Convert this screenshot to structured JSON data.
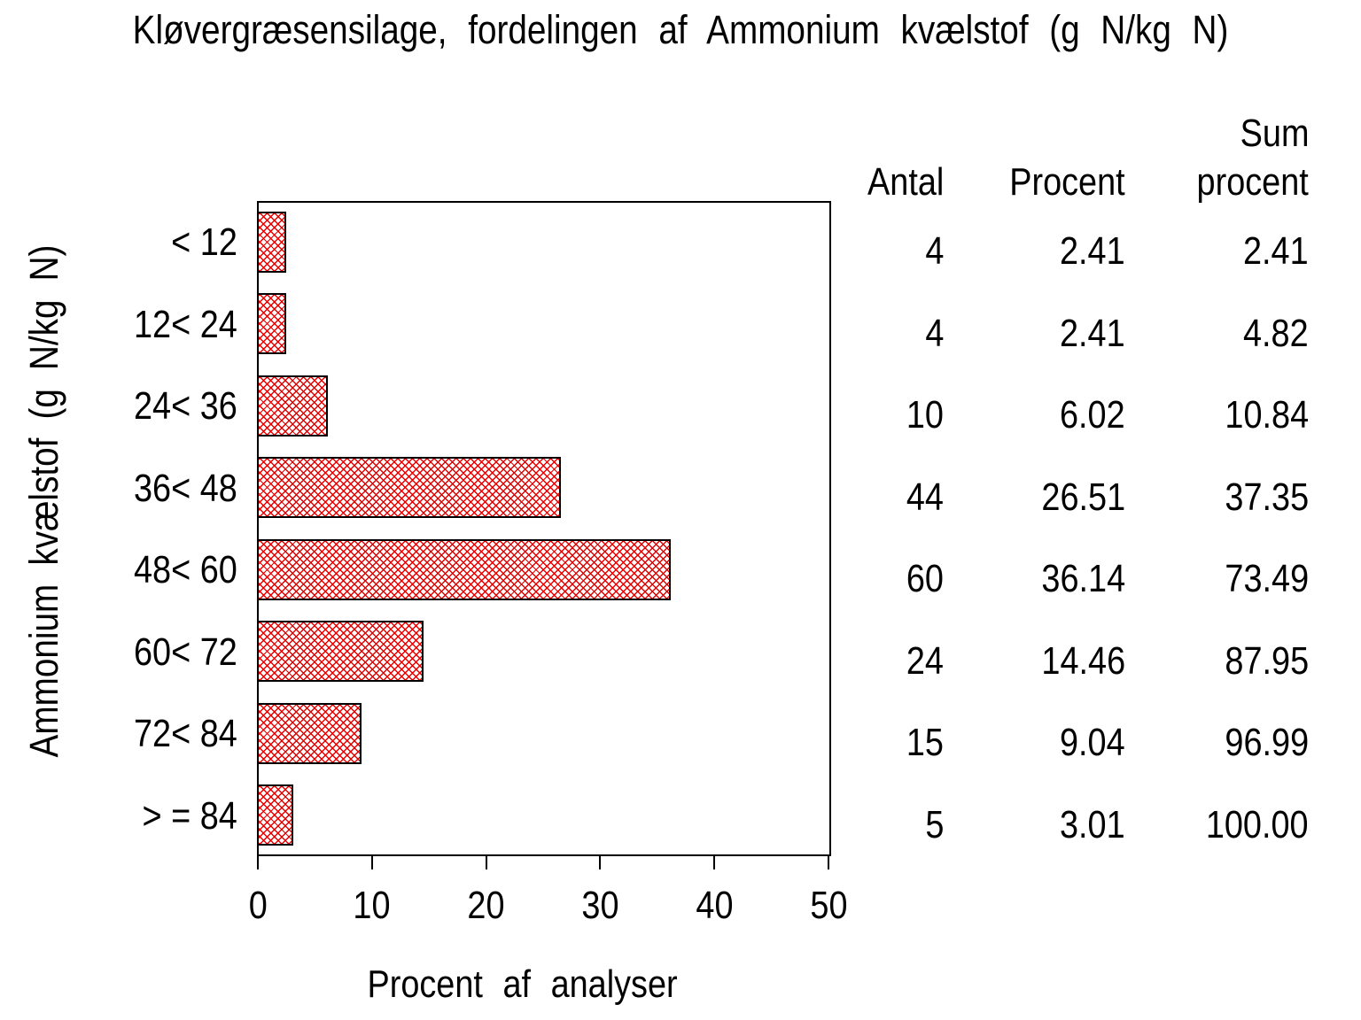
{
  "page": {
    "title": "Kløvergræsensilage, fordelingen af Ammonium kvælstof (g N/kg N)"
  },
  "chart_data": {
    "type": "bar",
    "orientation": "horizontal",
    "title": "Kløvergræsensilage, fordelingen af Ammonium kvælstof (g N/kg N)",
    "xlabel": "Procent af analyser",
    "ylabel": "Ammonium kvælstof (g N/kg N)",
    "xlim": [
      0,
      50
    ],
    "xticks": [
      "0",
      "10",
      "20",
      "30",
      "40",
      "50"
    ],
    "grid": false,
    "legend": "none",
    "bar_style": {
      "fill_pattern": "crosshatch",
      "pattern_color": "#e60000",
      "border_color": "#000000",
      "background": "#ffffff"
    },
    "categories": [
      "< 12",
      "12< 24",
      "24< 36",
      "36< 48",
      "48< 60",
      "60< 72",
      "72< 84",
      "> = 84"
    ],
    "values": [
      2.41,
      2.41,
      6.02,
      26.51,
      36.14,
      14.46,
      9.04,
      3.01
    ],
    "table": {
      "columns": [
        {
          "header_lines": [
            "Antal"
          ],
          "values": [
            "4",
            "4",
            "10",
            "44",
            "60",
            "24",
            "15",
            "5"
          ]
        },
        {
          "header_lines": [
            "Procent"
          ],
          "values": [
            "2.41",
            "2.41",
            "6.02",
            "26.51",
            "36.14",
            "14.46",
            "9.04",
            "3.01"
          ]
        },
        {
          "header_lines": [
            "Sum",
            "procent"
          ],
          "values": [
            "2.41",
            "4.82",
            "10.84",
            "37.35",
            "73.49",
            "87.95",
            "96.99",
            "100.00"
          ]
        }
      ]
    }
  }
}
